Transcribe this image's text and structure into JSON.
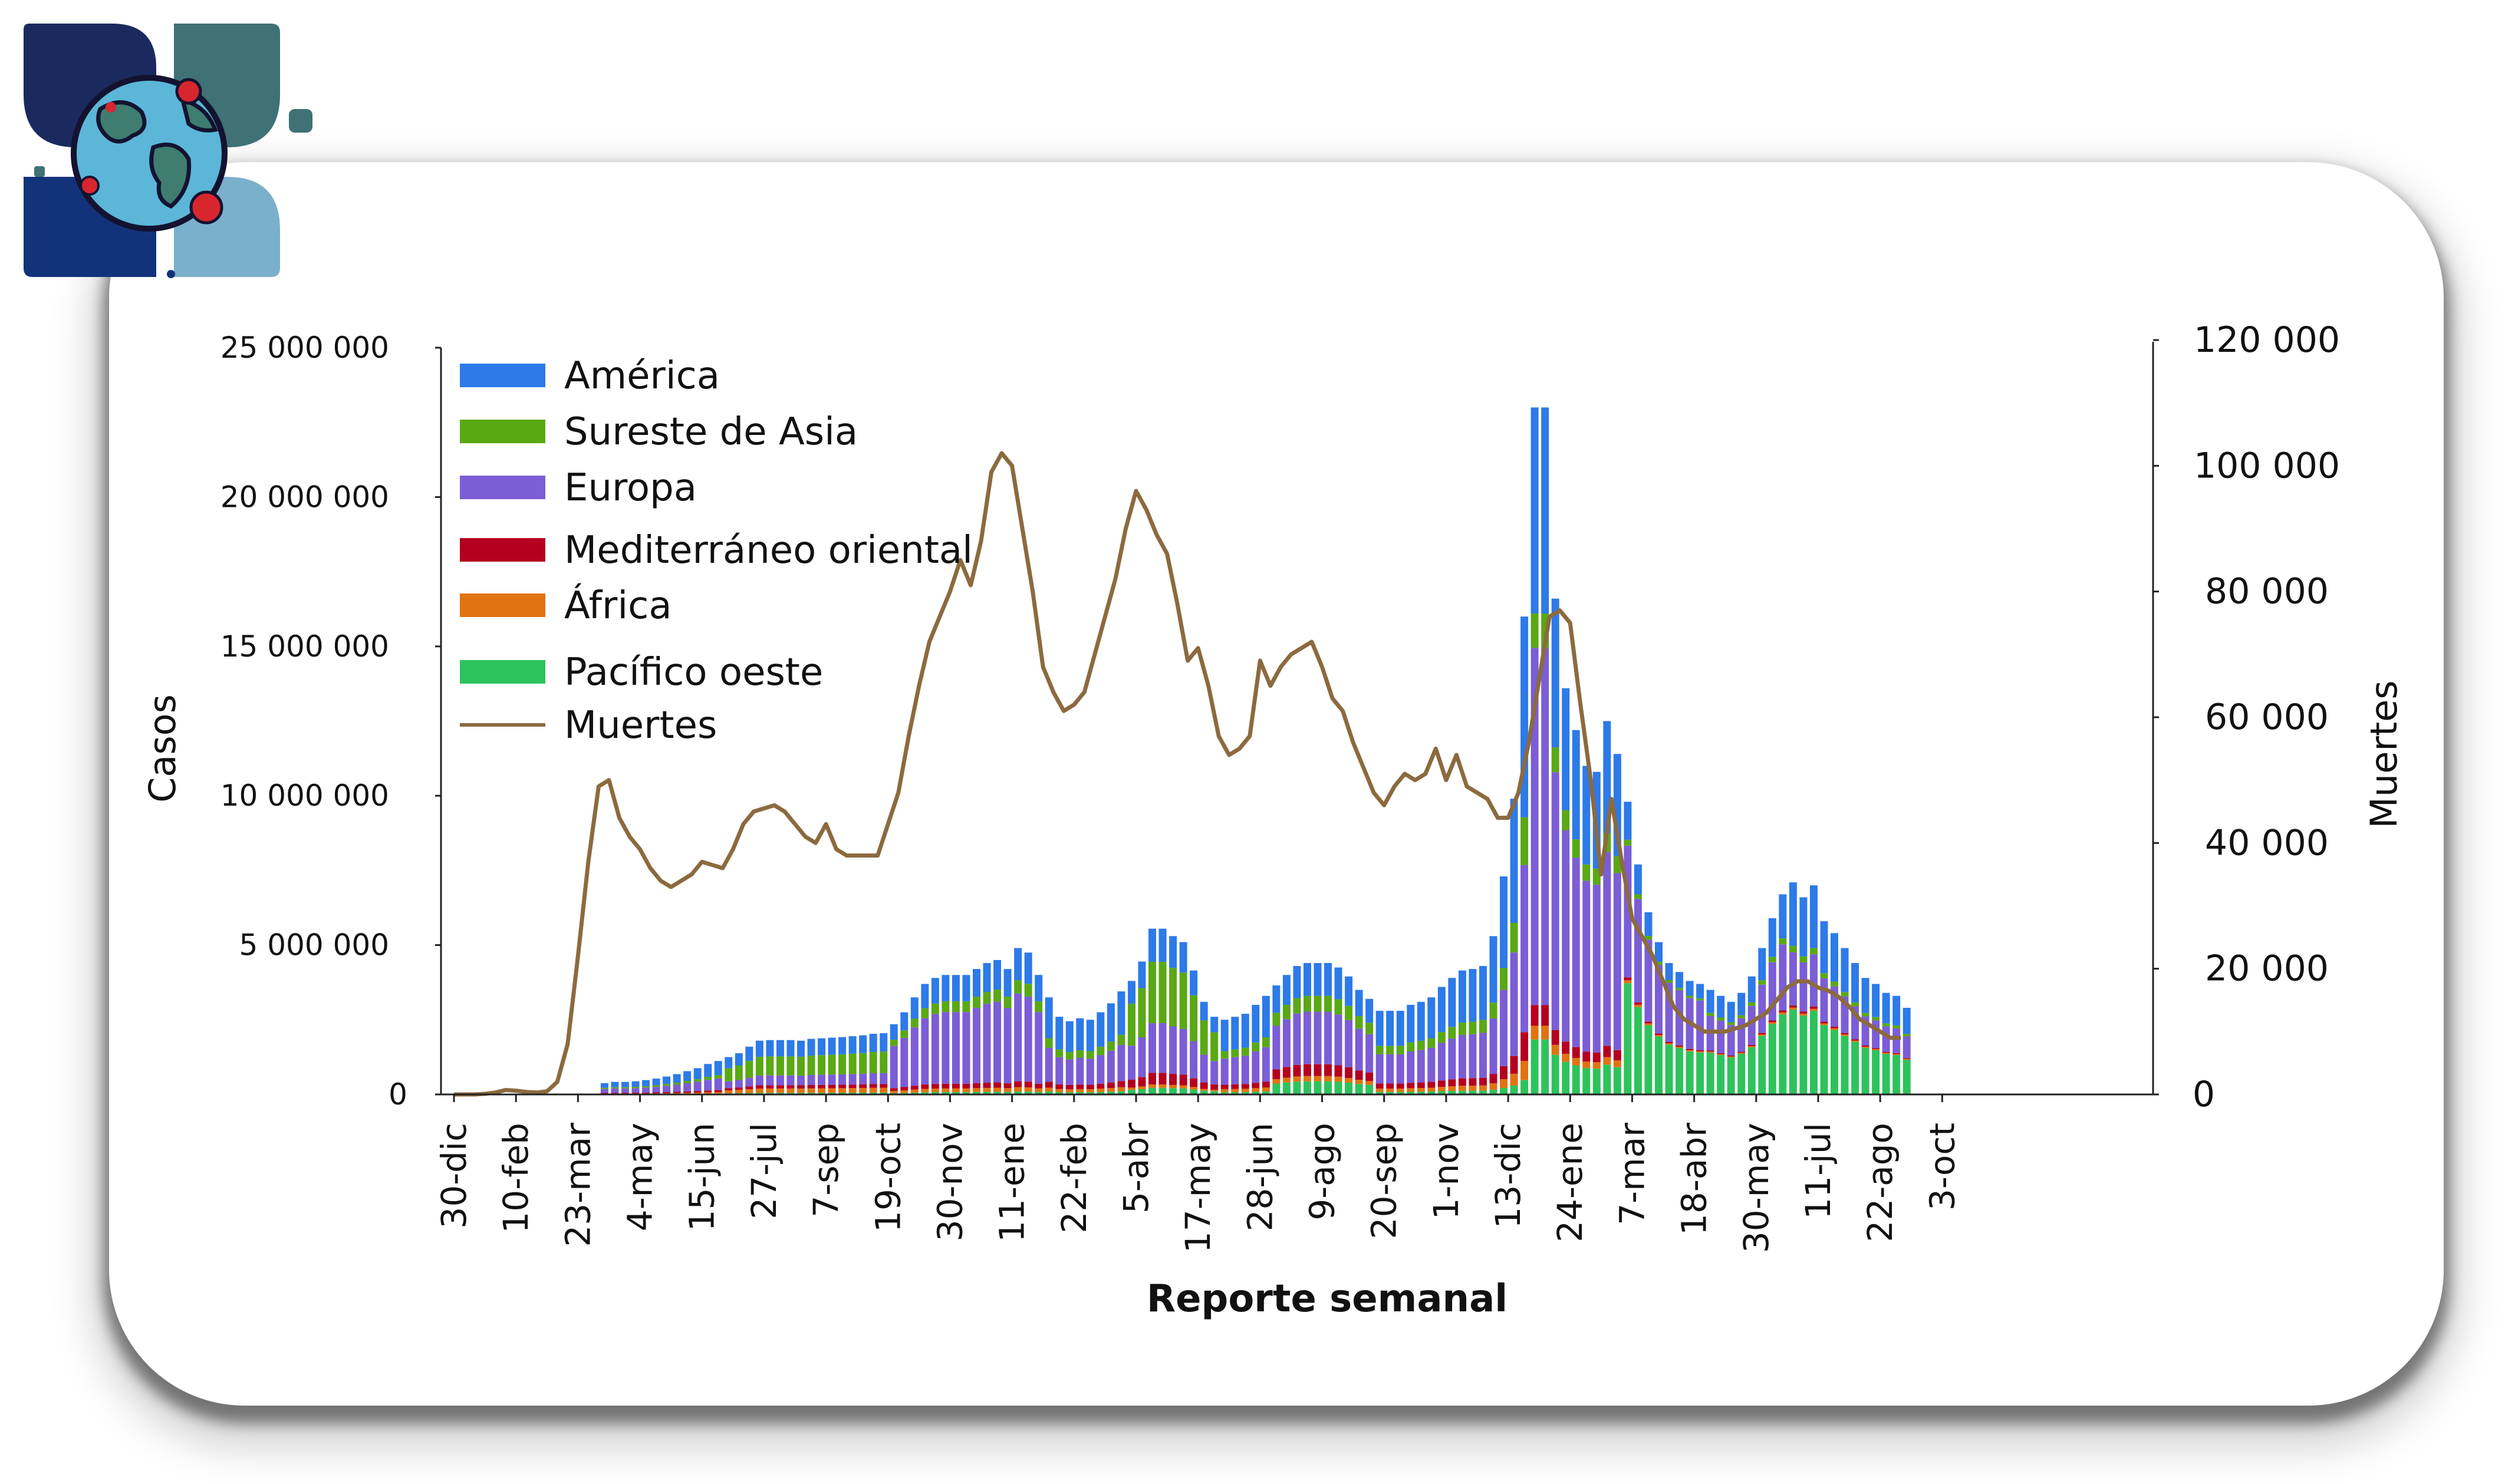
{
  "chart_data": {
    "type": "bar+line",
    "title": "",
    "xlabel": "Reporte semanal",
    "ylabel": "Casos",
    "y2label": "Muertes",
    "ylim": [
      0,
      25000000
    ],
    "y2lim": [
      0,
      120000
    ],
    "y_ticks": [
      "0",
      "5 000 000",
      "10 000 000",
      "15 000 000",
      "20 000 000",
      "25 000 000"
    ],
    "y2_ticks": [
      "0",
      "20 000",
      "40 000",
      "60 000",
      "80 000",
      "100 000",
      "120 000"
    ],
    "x_tick_labels": [
      {
        "week": 0,
        "label": "30-dic"
      },
      {
        "week": 6,
        "label": "10-feb"
      },
      {
        "week": 12,
        "label": "23-mar"
      },
      {
        "week": 18,
        "label": "4-may"
      },
      {
        "week": 24,
        "label": "15-jun"
      },
      {
        "week": 30,
        "label": "27-jul"
      },
      {
        "week": 36,
        "label": "7-sep"
      },
      {
        "week": 42,
        "label": "19-oct"
      },
      {
        "week": 48,
        "label": "30-nov"
      },
      {
        "week": 54,
        "label": "11-ene"
      },
      {
        "week": 60,
        "label": "22-feb"
      },
      {
        "week": 66,
        "label": "5-abr"
      },
      {
        "week": 72,
        "label": "17-may"
      },
      {
        "week": 78,
        "label": "28-jun"
      },
      {
        "week": 84,
        "label": "9-ago"
      },
      {
        "week": 90,
        "label": "20-sep"
      },
      {
        "week": 96,
        "label": "1-nov"
      },
      {
        "week": 102,
        "label": "13-dic"
      },
      {
        "week": 108,
        "label": "24-ene"
      },
      {
        "week": 114,
        "label": "7-mar"
      },
      {
        "week": 120,
        "label": "18-abr"
      },
      {
        "week": 126,
        "label": "30-may"
      },
      {
        "week": 132,
        "label": "11-jul"
      },
      {
        "week": 138,
        "label": "22-ago"
      },
      {
        "week": 144,
        "label": "3-oct"
      }
    ],
    "legend": {
      "position": "top-left",
      "entries": [
        "América",
        "Sureste de Asia",
        "Europa",
        "Mediterráneo oriental",
        "África",
        "Pacífico oeste",
        "Muertes"
      ]
    },
    "colors": {
      "América": "#2d7ae8",
      "Sureste de Asia": "#5aa814",
      "Europa": "#7b5dd6",
      "Mediterráneo oriental": "#b5001f",
      "África": "#e07312",
      "Pacífico oeste": "#2ec25c",
      "Muertes": "#8c6a3f"
    },
    "weekly_totals_millions": [
      0,
      0,
      0,
      0,
      0,
      0,
      0,
      0,
      0,
      0,
      0,
      0,
      0,
      0.01,
      0.38,
      0.42,
      0.42,
      0.44,
      0.48,
      0.53,
      0.6,
      0.68,
      0.78,
      0.88,
      1.02,
      1.12,
      1.25,
      1.38,
      1.6,
      1.8,
      1.82,
      1.82,
      1.82,
      1.8,
      1.86,
      1.88,
      1.9,
      1.92,
      1.95,
      1.98,
      2.03,
      2.05,
      2.35,
      2.75,
      3.25,
      3.7,
      3.9,
      4.0,
      4.0,
      4.0,
      4.2,
      4.4,
      4.5,
      4.2,
      4.9,
      4.75,
      4.0,
      3.25,
      2.6,
      2.45,
      2.55,
      2.5,
      2.75,
      3.05,
      3.45,
      3.8,
      4.45,
      5.55,
      5.55,
      5.3,
      5.1,
      4.15,
      3.1,
      2.6,
      2.5,
      2.6,
      2.7,
      3.0,
      3.3,
      3.65,
      4.0,
      4.3,
      4.4,
      4.4,
      4.4,
      4.25,
      3.95,
      3.5,
      3.2,
      2.8,
      2.8,
      2.8,
      3.0,
      3.1,
      3.25,
      3.6,
      3.9,
      4.15,
      4.2,
      4.3,
      5.3,
      7.3,
      9.9,
      16.0,
      23.0,
      23.0,
      16.6,
      13.6,
      12.2,
      11.0,
      10.8,
      12.5,
      11.4,
      9.8,
      7.7,
      6.1,
      5.1,
      4.4,
      4.1,
      3.8,
      3.7,
      3.5,
      3.3,
      3.1,
      3.4,
      3.95,
      4.9,
      5.9,
      6.7,
      7.1,
      6.6,
      7.0,
      5.8,
      5.4,
      4.9,
      4.4,
      3.9,
      3.7,
      3.4,
      3.3,
      2.9
    ],
    "series_shares": {
      "Pacífico oeste": "varies by week (dominant early 2022 peak)",
      "Europa": "largest share most weeks",
      "América": "top segment of each bar"
    },
    "deaths": [
      0,
      0,
      0,
      100,
      300,
      700,
      600,
      400,
      300,
      500,
      2000,
      8000,
      22000,
      37000,
      49000,
      50000,
      44000,
      41000,
      39000,
      36000,
      34000,
      33000,
      34000,
      35000,
      37000,
      36500,
      36000,
      39000,
      43000,
      45000,
      45500,
      46000,
      45000,
      43000,
      41000,
      40000,
      43000,
      39000,
      38000,
      38000,
      38000,
      38000,
      43000,
      48000,
      57000,
      65000,
      72000,
      76000,
      80000,
      85000,
      81000,
      88000,
      99000,
      102000,
      100000,
      90000,
      80000,
      68000,
      64000,
      61000,
      62000,
      64000,
      70000,
      76000,
      82000,
      90000,
      96000,
      93000,
      89000,
      86000,
      78000,
      69000,
      71000,
      65000,
      57000,
      54000,
      55000,
      57000,
      69000,
      65000,
      68000,
      70000,
      71000,
      72000,
      68000,
      63000,
      61000,
      56000,
      52000,
      48000,
      46000,
      49000,
      51000,
      50000,
      51000,
      55000,
      50000,
      54000,
      49000,
      48000,
      47000,
      44000,
      44000,
      48000,
      56000,
      66000,
      76000,
      77000,
      75000,
      62000,
      50000,
      35000,
      47000,
      37000,
      28000,
      25000,
      22000,
      18000,
      14000,
      12000,
      11000,
      10000,
      10000,
      10000,
      10500,
      11000,
      12000,
      13000,
      15000,
      17000,
      18000,
      18000,
      17000,
      16500,
      15500,
      14000,
      12000,
      11000,
      10000,
      9000,
      9000
    ]
  }
}
